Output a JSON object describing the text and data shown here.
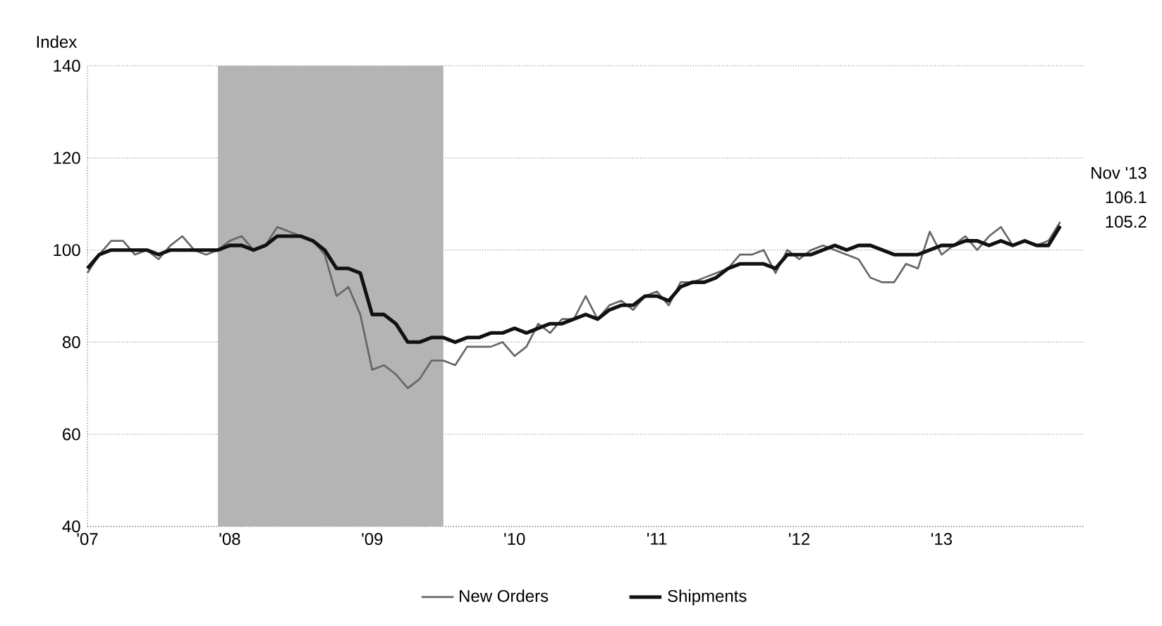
{
  "chart_data": {
    "type": "line",
    "ylabel": "Index",
    "x": [
      "2007-01",
      "2007-02",
      "2007-03",
      "2007-04",
      "2007-05",
      "2007-06",
      "2007-07",
      "2007-08",
      "2007-09",
      "2007-10",
      "2007-11",
      "2007-12",
      "2008-01",
      "2008-02",
      "2008-03",
      "2008-04",
      "2008-05",
      "2008-06",
      "2008-07",
      "2008-08",
      "2008-09",
      "2008-10",
      "2008-11",
      "2008-12",
      "2009-01",
      "2009-02",
      "2009-03",
      "2009-04",
      "2009-05",
      "2009-06",
      "2009-07",
      "2009-08",
      "2009-09",
      "2009-10",
      "2009-11",
      "2009-12",
      "2010-01",
      "2010-02",
      "2010-03",
      "2010-04",
      "2010-05",
      "2010-06",
      "2010-07",
      "2010-08",
      "2010-09",
      "2010-10",
      "2010-11",
      "2010-12",
      "2011-01",
      "2011-02",
      "2011-03",
      "2011-04",
      "2011-05",
      "2011-06",
      "2011-07",
      "2011-08",
      "2011-09",
      "2011-10",
      "2011-11",
      "2011-12",
      "2012-01",
      "2012-02",
      "2012-03",
      "2012-04",
      "2012-05",
      "2012-06",
      "2012-07",
      "2012-08",
      "2012-09",
      "2012-10",
      "2012-11",
      "2012-12",
      "2013-01",
      "2013-02",
      "2013-03",
      "2013-04",
      "2013-05",
      "2013-06",
      "2013-07",
      "2013-08",
      "2013-09",
      "2013-10",
      "2013-11"
    ],
    "series": [
      {
        "name": "New Orders",
        "color": "#666666",
        "values": [
          95,
          99,
          102,
          102,
          99,
          100,
          98,
          101,
          103,
          100,
          99,
          100,
          102,
          103,
          100,
          101,
          105,
          104,
          103,
          102,
          99,
          90,
          92,
          86,
          74,
          75,
          73,
          70,
          72,
          76,
          76,
          75,
          79,
          79,
          79,
          80,
          77,
          79,
          84,
          82,
          85,
          85,
          90,
          85,
          88,
          89,
          87,
          90,
          91,
          88,
          93,
          93,
          94,
          95,
          96,
          99,
          99,
          100,
          95,
          100,
          98,
          100,
          101,
          100,
          99,
          98,
          94,
          93,
          93,
          97,
          96,
          104,
          99,
          101,
          103,
          100,
          103,
          105,
          101,
          102,
          101,
          102,
          106.1
        ]
      },
      {
        "name": "Shipments",
        "color": "#111111",
        "values": [
          96,
          99,
          100,
          100,
          100,
          100,
          99,
          100,
          100,
          100,
          100,
          100,
          101,
          101,
          100,
          101,
          103,
          103,
          103,
          102,
          100,
          96,
          96,
          95,
          86,
          86,
          84,
          80,
          80,
          81,
          81,
          80,
          81,
          81,
          82,
          82,
          83,
          82,
          83,
          84,
          84,
          85,
          86,
          85,
          87,
          88,
          88,
          90,
          90,
          89,
          92,
          93,
          93,
          94,
          96,
          97,
          97,
          97,
          96,
          99,
          99,
          99,
          100,
          101,
          100,
          101,
          101,
          100,
          99,
          99,
          99,
          100,
          101,
          101,
          102,
          102,
          101,
          102,
          101,
          102,
          101,
          101,
          105.2
        ]
      }
    ],
    "xlim": [
      "2007",
      "2014"
    ],
    "xticks": [
      {
        "value": "2007",
        "label": "'07"
      },
      {
        "value": "2008",
        "label": "'08"
      },
      {
        "value": "2009",
        "label": "'09"
      },
      {
        "value": "2010",
        "label": "'10"
      },
      {
        "value": "2011",
        "label": "'11"
      },
      {
        "value": "2012",
        "label": "'12"
      },
      {
        "value": "2013",
        "label": "'13"
      }
    ],
    "ylim": [
      40,
      140
    ],
    "yticks": [
      40,
      60,
      80,
      100,
      120,
      140
    ],
    "bands": [
      {
        "axis": "x",
        "from": "2007-12",
        "to": "2009-07",
        "color": "#b4b4b4"
      }
    ],
    "annotations": [
      "Nov '13",
      "106.1",
      "105.2"
    ],
    "grid": "y",
    "legend": "bottom",
    "line_style": "solid",
    "marker": "none"
  }
}
